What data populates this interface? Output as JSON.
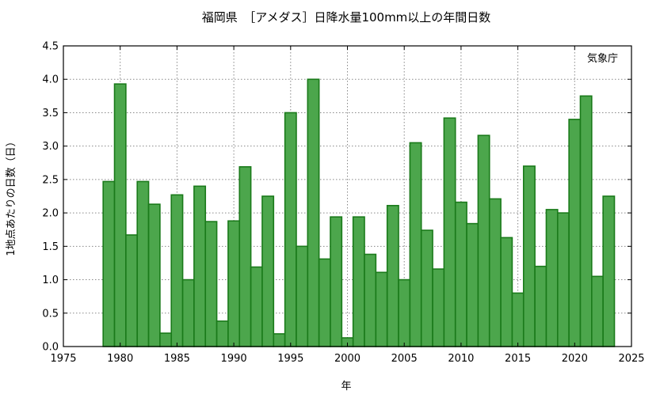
{
  "chart_data": {
    "type": "bar",
    "title": "福岡県　［アメダス］日降水量100mm以上の年間日数",
    "xlabel": "年",
    "ylabel": "1地点あたりの日数（日）",
    "annotation": "気象庁",
    "xlim": [
      1975,
      2025
    ],
    "ylim": [
      0,
      4.5
    ],
    "x_ticks": [
      "1975",
      "1980",
      "1985",
      "1990",
      "1995",
      "2000",
      "2005",
      "2010",
      "2015",
      "2020",
      "2025"
    ],
    "y_ticks": [
      "0.0",
      "0.5",
      "1.0",
      "1.5",
      "2.0",
      "2.5",
      "3.0",
      "3.5",
      "4.0",
      "4.5"
    ],
    "grid": true,
    "bar_color": "#4ca64c",
    "bar_edge_color": "#1a7a1a",
    "x": [
      1979,
      1980,
      1981,
      1982,
      1983,
      1984,
      1985,
      1986,
      1987,
      1988,
      1989,
      1990,
      1991,
      1992,
      1993,
      1994,
      1995,
      1996,
      1997,
      1998,
      1999,
      2000,
      2001,
      2002,
      2003,
      2004,
      2005,
      2006,
      2007,
      2008,
      2009,
      2010,
      2011,
      2012,
      2013,
      2014,
      2015,
      2016,
      2017,
      2018,
      2019,
      2020,
      2021,
      2022,
      2023
    ],
    "values": [
      2.47,
      3.93,
      1.67,
      2.47,
      2.13,
      0.2,
      2.27,
      1.0,
      2.4,
      1.87,
      0.38,
      1.88,
      2.69,
      1.19,
      2.25,
      0.19,
      3.5,
      1.5,
      4.0,
      1.31,
      1.94,
      0.13,
      1.94,
      1.38,
      1.11,
      2.11,
      1.0,
      3.05,
      1.74,
      1.16,
      3.42,
      2.16,
      1.84,
      3.16,
      2.21,
      1.63,
      0.8,
      2.7,
      1.2,
      2.05,
      2.0,
      3.4,
      3.75,
      1.05,
      2.25
    ]
  }
}
